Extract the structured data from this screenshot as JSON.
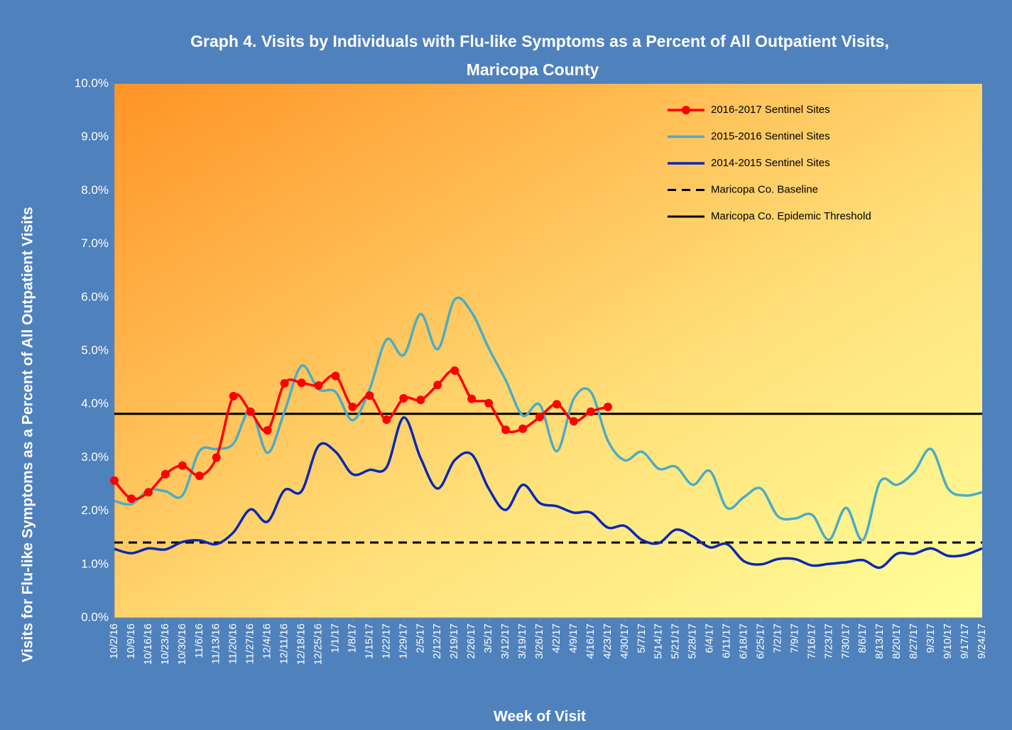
{
  "chart_data": {
    "type": "line",
    "title": [
      "Graph 4. Visits by Individuals  with Flu-like Symptoms as a Percent of All Outpatient Visits,",
      "Maricopa County"
    ],
    "x_label": "Week of Visit",
    "y_label": "Visits for Flu-like Symptoms as a Percent of All Outpatient Visits",
    "categories": [
      "10/2/16",
      "10/9/16",
      "10/16/16",
      "10/23/16",
      "10/30/16",
      "11/6/16",
      "11/13/16",
      "11/20/16",
      "11/27/16",
      "12/4/16",
      "12/11/16",
      "12/18/16",
      "12/25/16",
      "1/1/17",
      "1/8/17",
      "1/15/17",
      "1/22/17",
      "1/29/17",
      "2/5/17",
      "2/12/17",
      "2/19/17",
      "2/26/17",
      "3/5/17",
      "3/12/17",
      "3/19/17",
      "3/26/17",
      "4/2/17",
      "4/9/17",
      "4/16/17",
      "4/23/17",
      "4/30/17",
      "5/7/17",
      "5/14/17",
      "5/21/17",
      "5/28/17",
      "6/4/17",
      "6/11/17",
      "6/18/17",
      "6/25/17",
      "7/2/17",
      "7/9/17",
      "7/16/17",
      "7/23/17",
      "7/30/17",
      "8/6/17",
      "8/13/17",
      "8/20/17",
      "8/27/17",
      "9/3/17",
      "9/10/17",
      "9/17/17",
      "9/24/17"
    ],
    "ylim": [
      0,
      10
    ],
    "yticks": [
      {
        "value": 0,
        "label": "0.0%"
      },
      {
        "value": 1,
        "label": "1.0%"
      },
      {
        "value": 2,
        "label": "2.0%"
      },
      {
        "value": 3,
        "label": "3.0%"
      },
      {
        "value": 4,
        "label": "4.0%"
      },
      {
        "value": 5,
        "label": "5.0%"
      },
      {
        "value": 6,
        "label": "6.0%"
      },
      {
        "value": 7,
        "label": "7.0%"
      },
      {
        "value": 8,
        "label": "8.0%"
      },
      {
        "value": 9,
        "label": "9.0%"
      },
      {
        "value": 10,
        "label": "10.0%"
      }
    ],
    "legend": "top-right",
    "series": [
      {
        "name": "2016-2017 Sentinel Sites",
        "color": "#ff0000",
        "markers": true,
        "values": [
          2.57,
          2.23,
          2.35,
          2.69,
          2.85,
          2.66,
          3.0,
          4.15,
          3.86,
          3.51,
          4.39,
          4.4,
          4.35,
          4.53,
          3.95,
          4.16,
          3.71,
          4.11,
          4.08,
          4.36,
          4.63,
          4.1,
          4.02,
          3.52,
          3.54,
          3.76,
          4.0,
          3.68,
          3.86,
          3.95,
          null,
          null,
          null,
          null,
          null,
          null,
          null,
          null,
          null,
          null,
          null,
          null,
          null,
          null,
          null,
          null,
          null,
          null,
          null,
          null,
          null,
          null
        ]
      },
      {
        "name": "2015-2016 Sentinel Sites",
        "color": "#4bacc6",
        "markers": false,
        "values": [
          2.19,
          2.13,
          2.39,
          2.37,
          2.29,
          3.12,
          3.16,
          3.26,
          3.88,
          3.09,
          3.86,
          4.72,
          4.28,
          4.23,
          3.7,
          4.28,
          5.21,
          4.92,
          5.69,
          5.03,
          5.96,
          5.72,
          5.05,
          4.45,
          3.79,
          3.99,
          3.12,
          4.1,
          4.23,
          3.32,
          2.95,
          3.11,
          2.79,
          2.83,
          2.49,
          2.75,
          2.06,
          2.26,
          2.42,
          1.9,
          1.86,
          1.93,
          1.46,
          2.06,
          1.46,
          2.55,
          2.49,
          2.73,
          3.16,
          2.42,
          2.29,
          2.35
        ]
      },
      {
        "name": "2014-2015 Sentinel Sites",
        "color": "#0a28b4",
        "markers": false,
        "values": [
          1.29,
          1.21,
          1.3,
          1.28,
          1.42,
          1.45,
          1.38,
          1.6,
          2.03,
          1.8,
          2.39,
          2.37,
          3.22,
          3.11,
          2.69,
          2.77,
          2.82,
          3.75,
          2.99,
          2.42,
          2.95,
          3.06,
          2.42,
          2.02,
          2.49,
          2.15,
          2.09,
          1.97,
          1.97,
          1.69,
          1.72,
          1.46,
          1.4,
          1.65,
          1.52,
          1.32,
          1.38,
          1.06,
          1.0,
          1.1,
          1.1,
          0.98,
          1.01,
          1.04,
          1.08,
          0.94,
          1.2,
          1.2,
          1.3,
          1.16,
          1.18,
          1.3
        ]
      }
    ],
    "reference_lines": [
      {
        "name": "Maricopa Co. Baseline",
        "color": "#000000",
        "dashed": true,
        "value": 1.41
      },
      {
        "name": "Maricopa Co. Epidemic Threshold",
        "color": "#000000",
        "dashed": false,
        "value": 3.82
      }
    ]
  }
}
